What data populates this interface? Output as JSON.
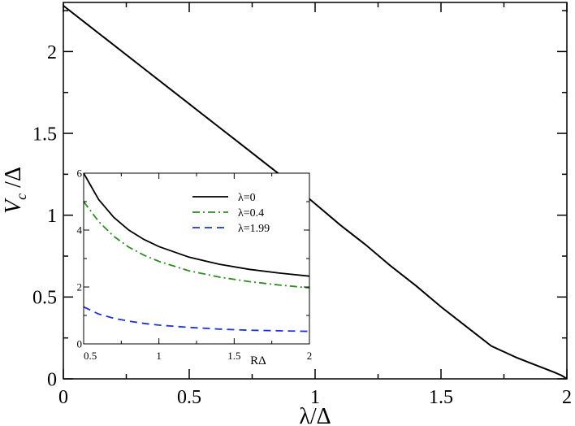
{
  "chart_data": [
    {
      "type": "line",
      "xlabel": "λ/Δ",
      "ylabel_main": "V",
      "ylabel_sub": "c",
      "ylabel_tail": " /Δ",
      "xlim": [
        0,
        2
      ],
      "ylim": [
        0,
        2.3
      ],
      "xticks": [
        0,
        0.5,
        1,
        1.5,
        2
      ],
      "xtick_labels": [
        "0",
        "0.5",
        "1",
        "1.5",
        "2"
      ],
      "yticks": [
        0,
        0.5,
        1,
        1.5,
        2
      ],
      "ytick_labels": [
        "0",
        "0.5",
        "1",
        "1.5",
        "2"
      ],
      "grid": false,
      "series": [
        {
          "color": "#000000",
          "dash": "solid",
          "x": [
            0,
            0.1,
            0.2,
            0.3,
            0.4,
            0.5,
            0.6,
            0.7,
            0.8,
            0.9,
            1.0,
            1.1,
            1.2,
            1.3,
            1.4,
            1.5,
            1.6,
            1.7,
            1.8,
            1.85,
            1.9,
            1.95,
            1.98,
            2.0
          ],
          "y": [
            2.28,
            2.16,
            2.04,
            1.92,
            1.8,
            1.68,
            1.56,
            1.44,
            1.32,
            1.2,
            1.07,
            0.94,
            0.82,
            0.69,
            0.57,
            0.44,
            0.32,
            0.2,
            0.13,
            0.1,
            0.07,
            0.04,
            0.02,
            0.0
          ]
        }
      ]
    },
    {
      "type": "line",
      "xlabel": "RΔ",
      "xlim": [
        0.5,
        2
      ],
      "ylim": [
        0,
        6
      ],
      "xticks": [
        0.5,
        1,
        1.5,
        2
      ],
      "xtick_labels": [
        "0.5",
        "1",
        "1.5",
        "2"
      ],
      "yticks": [
        0,
        2,
        4,
        6
      ],
      "ytick_labels": [
        "0",
        "2",
        "4",
        "6"
      ],
      "legend_position": "top-right",
      "grid": false,
      "series": [
        {
          "name": "λ=0",
          "color": "#000000",
          "dash": "solid",
          "x": [
            0.5,
            0.6,
            0.7,
            0.8,
            0.9,
            1.0,
            1.2,
            1.4,
            1.6,
            1.8,
            2.0
          ],
          "y": [
            6.0,
            5.07,
            4.45,
            4.0,
            3.67,
            3.42,
            3.05,
            2.8,
            2.62,
            2.49,
            2.38
          ]
        },
        {
          "name": "λ=0.4",
          "color": "#2e8b22",
          "dash": "dashdot",
          "x": [
            0.5,
            0.6,
            0.7,
            0.8,
            0.9,
            1.0,
            1.2,
            1.4,
            1.6,
            1.8,
            2.0
          ],
          "y": [
            5.0,
            4.3,
            3.78,
            3.4,
            3.12,
            2.9,
            2.57,
            2.35,
            2.19,
            2.07,
            1.97
          ]
        },
        {
          "name": "λ=1.99",
          "color": "#1f33d6",
          "dash": "dashed",
          "x": [
            0.5,
            0.6,
            0.7,
            0.8,
            0.9,
            1.0,
            1.2,
            1.4,
            1.6,
            1.8,
            2.0
          ],
          "y": [
            1.3,
            1.05,
            0.9,
            0.8,
            0.72,
            0.66,
            0.58,
            0.52,
            0.48,
            0.46,
            0.44
          ]
        }
      ]
    }
  ]
}
